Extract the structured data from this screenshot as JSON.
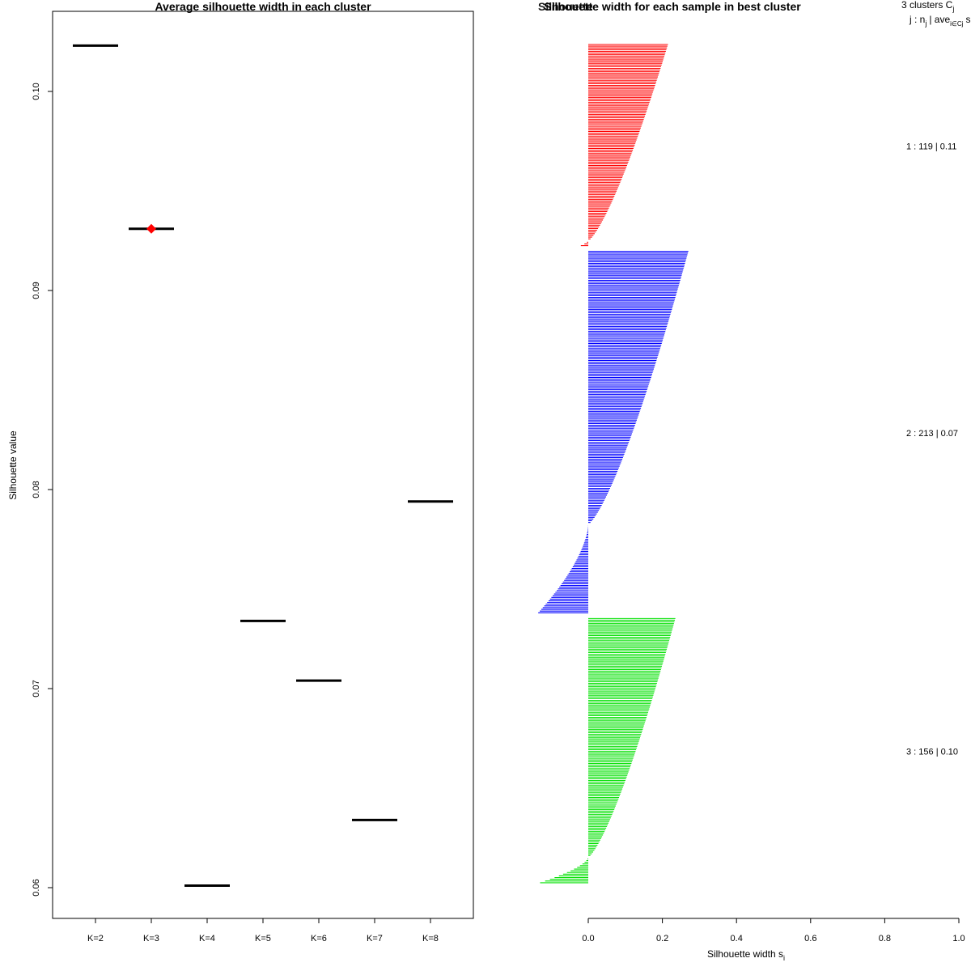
{
  "chart_data": [
    {
      "type": "scatter",
      "title": "Average silhouette width in each cluster",
      "xlabel": "",
      "ylabel": "Silhouette value",
      "categories": [
        "K=2",
        "K=3",
        "K=4",
        "K=5",
        "K=6",
        "K=7",
        "K=8"
      ],
      "values": [
        0.1023,
        0.0931,
        0.0601,
        0.0734,
        0.0704,
        0.0634,
        0.0794
      ],
      "best_index": 1,
      "best_color": "#ff0000",
      "ylim": [
        0.0585,
        0.104
      ],
      "yticks": [
        0.06,
        0.07,
        0.08,
        0.09,
        0.1
      ],
      "ytick_labels": [
        "0.06",
        "0.07",
        "0.08",
        "0.09",
        "0.10"
      ]
    },
    {
      "type": "bar",
      "orientation": "horizontal",
      "title": "Silhouette width for each sample in best cluster",
      "overlap_title": "Silhouette",
      "xlabel": "Silhouette width s",
      "xlabel_sub": "i",
      "xlim": [
        0.0,
        1.0
      ],
      "xticks": [
        0.0,
        0.2,
        0.4,
        0.6,
        0.8,
        1.0
      ],
      "xtick_labels": [
        "0.0",
        "0.2",
        "0.4",
        "0.6",
        "0.8",
        "1.0"
      ],
      "header_line1": "3  clusters  C",
      "header_line1_sub": "j",
      "header_line2": "j :  n",
      "header_line2_sub": "j",
      "header_line2_tail": "| ave",
      "header_line2_sub2": "i∈Cj",
      "header_line2_end": "s",
      "clusters": [
        {
          "label": "1 :  119  |  0.11",
          "n": 119,
          "color": "#ff0000",
          "max": 0.215,
          "min": -0.02,
          "negatives": 3
        },
        {
          "label": "2 :  213  |  0.07",
          "n": 213,
          "color": "#0000ff",
          "max": 0.27,
          "min": -0.135,
          "negatives": 52
        },
        {
          "label": "3 :  156  |  0.10",
          "n": 156,
          "color": "#00e000",
          "max": 0.235,
          "min": -0.13,
          "negatives": 15
        }
      ]
    }
  ]
}
